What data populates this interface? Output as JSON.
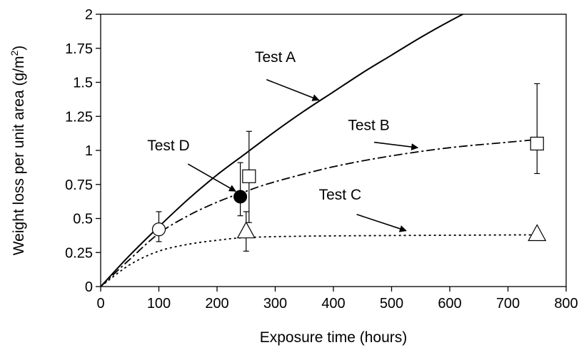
{
  "chart_data": {
    "type": "line",
    "title": "",
    "xlabel": "Exposure time (hours)",
    "ylabel": {
      "text": "Weight loss per unit area (g/m",
      "superscript": "2",
      "suffix": ")"
    },
    "xlim": [
      0,
      800
    ],
    "ylim": [
      0,
      2
    ],
    "xticks": [
      0,
      100,
      200,
      300,
      400,
      500,
      600,
      700,
      800
    ],
    "yticks": [
      0,
      0.25,
      0.5,
      0.75,
      1,
      1.25,
      1.5,
      1.75,
      2
    ],
    "ytick_labels": [
      "0",
      "0.25",
      "0.5",
      "0.75",
      "1",
      "1.25",
      "1.5",
      "1.75",
      "2"
    ],
    "grid": false,
    "series": [
      {
        "name": "Test A",
        "style": "solid",
        "curve": [
          [
            0,
            0
          ],
          [
            50,
            0.23
          ],
          [
            100,
            0.44
          ],
          [
            150,
            0.64
          ],
          [
            200,
            0.82
          ],
          [
            250,
            0.98
          ],
          [
            300,
            1.14
          ],
          [
            350,
            1.29
          ],
          [
            400,
            1.43
          ],
          [
            450,
            1.57
          ],
          [
            500,
            1.7
          ],
          [
            550,
            1.83
          ],
          [
            600,
            1.95
          ],
          [
            650,
            2.06
          ],
          [
            700,
            2.17
          ]
        ]
      },
      {
        "name": "Test B",
        "style": "dash-dot",
        "marker": "square",
        "curve": [
          [
            0,
            0
          ],
          [
            50,
            0.2
          ],
          [
            100,
            0.39
          ],
          [
            150,
            0.52
          ],
          [
            200,
            0.62
          ],
          [
            250,
            0.7
          ],
          [
            300,
            0.77
          ],
          [
            400,
            0.88
          ],
          [
            500,
            0.96
          ],
          [
            600,
            1.02
          ],
          [
            700,
            1.06
          ],
          [
            750,
            1.08
          ]
        ],
        "points": [
          {
            "x": 255,
            "y": 0.81,
            "err_low": 0.47,
            "err_high": 1.14
          },
          {
            "x": 750,
            "y": 1.05,
            "err_low": 0.83,
            "err_high": 1.49
          }
        ]
      },
      {
        "name": "Test C",
        "style": "dotted",
        "marker": "triangle",
        "curve": [
          [
            0,
            0
          ],
          [
            50,
            0.16
          ],
          [
            100,
            0.26
          ],
          [
            150,
            0.31
          ],
          [
            200,
            0.34
          ],
          [
            250,
            0.36
          ],
          [
            350,
            0.37
          ],
          [
            500,
            0.375
          ],
          [
            750,
            0.38
          ]
        ],
        "points": [
          {
            "x": 250,
            "y": 0.41,
            "err_low": 0.26,
            "err_high": 0.55
          },
          {
            "x": 750,
            "y": 0.39
          }
        ]
      },
      {
        "name": "Test D",
        "marker": "filled-circle",
        "points": [
          {
            "x": 240,
            "y": 0.66,
            "err_low": 0.52,
            "err_high": 0.91
          }
        ]
      },
      {
        "marker": "open-circle",
        "points": [
          {
            "x": 100,
            "y": 0.42,
            "err_low": 0.33,
            "err_high": 0.55
          }
        ]
      }
    ],
    "annotations": [
      {
        "text": "Test A",
        "label_at": [
          265,
          1.65
        ],
        "arrow_from": [
          285,
          1.52
        ],
        "arrow_to": [
          375,
          1.37
        ]
      },
      {
        "text": "Test B",
        "label_at": [
          425,
          1.15
        ],
        "arrow_from": [
          470,
          1.06
        ],
        "arrow_to": [
          545,
          1.02
        ]
      },
      {
        "text": "Test C",
        "label_at": [
          375,
          0.64
        ],
        "arrow_from": [
          440,
          0.53
        ],
        "arrow_to": [
          525,
          0.41
        ]
      },
      {
        "text": "Test D",
        "label_at": [
          80,
          1.0
        ],
        "arrow_from": [
          150,
          0.9
        ],
        "arrow_to": [
          232,
          0.7
        ]
      }
    ]
  }
}
